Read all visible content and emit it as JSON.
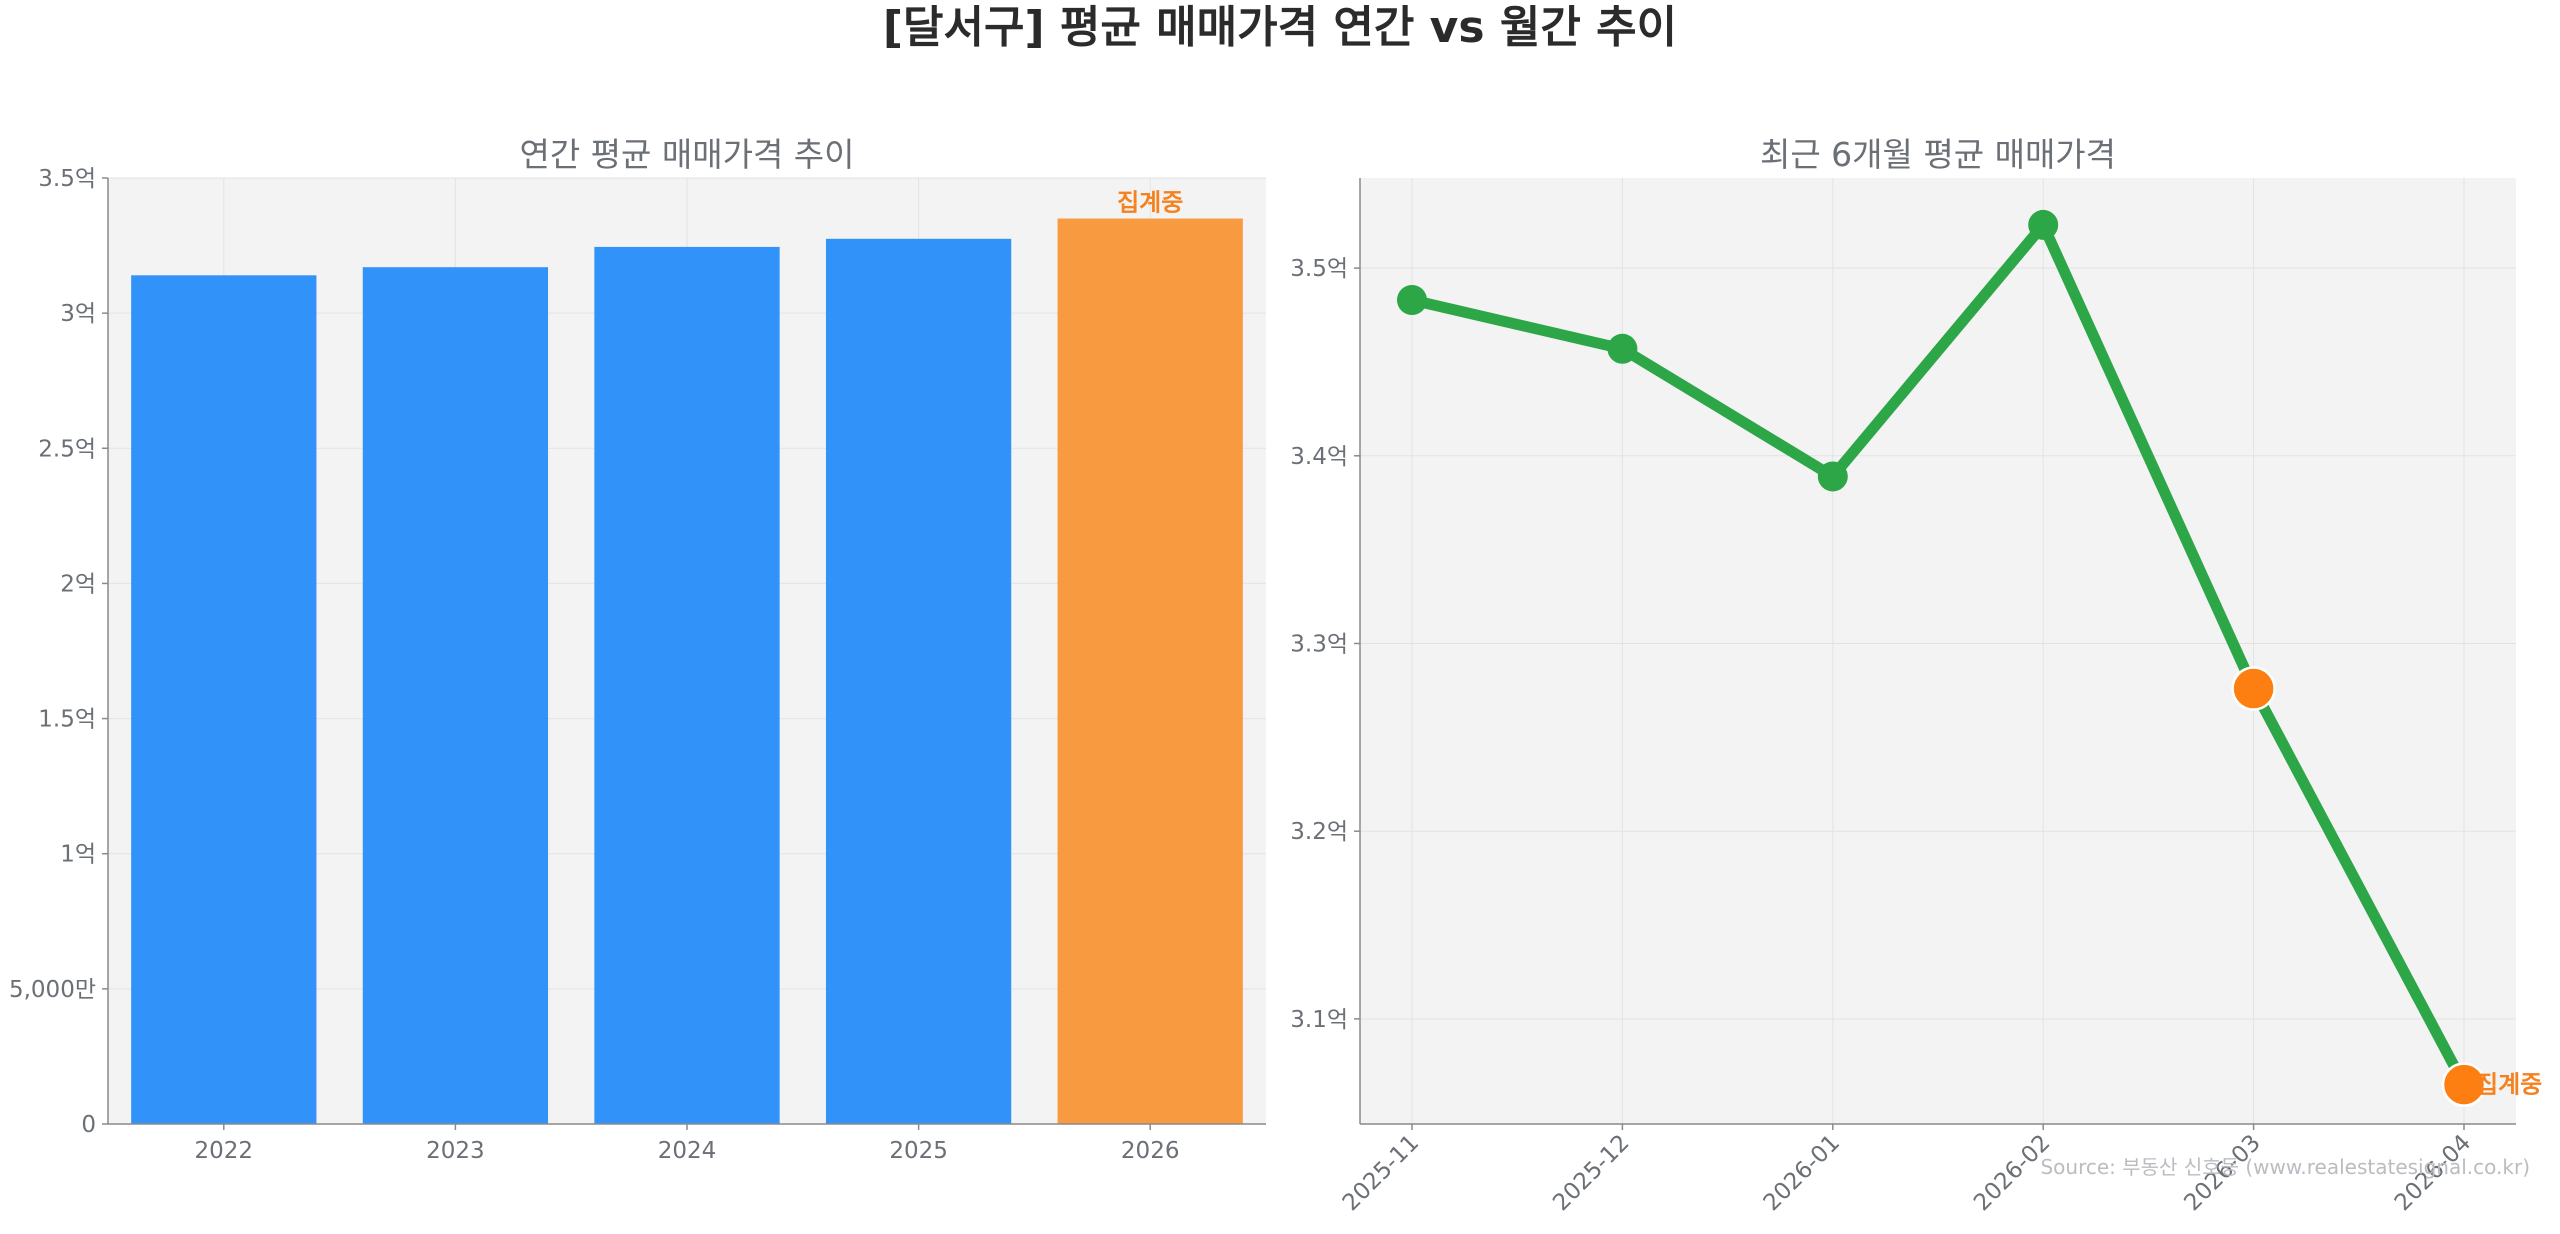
{
  "title": "[달서구] 평균 매매가격 연간 vs 월간 추이",
  "source": "Source: 부동산 신호등 (www.realestatesignal.co.kr)",
  "colors": {
    "bar": "#3193fa",
    "bar_partial": "#f89a40",
    "line": "#2ca646",
    "point_partial": "#fd7f11",
    "annotation": "#f5821f",
    "plot_bg": "#f3f3f3",
    "grid": "#e3e3e3"
  },
  "chart_data": [
    {
      "type": "bar",
      "title": "연간 평균 매매가격 추이",
      "categories": [
        "2022",
        "2023",
        "2024",
        "2025",
        "2026"
      ],
      "values": [
        314000000,
        317000000,
        324500000,
        327500000,
        335000000
      ],
      "in_progress": [
        false,
        false,
        false,
        false,
        true
      ],
      "annotation": "집계중",
      "ylim": [
        0,
        350000000
      ],
      "yticks": [
        0,
        50000000,
        100000000,
        150000000,
        200000000,
        250000000,
        300000000,
        350000000
      ],
      "ytick_labels": [
        "0",
        "5,000만",
        "1억",
        "1.5억",
        "2억",
        "2.5억",
        "3억",
        "3.5억"
      ],
      "grid": true
    },
    {
      "type": "line",
      "title": "최근 6개월 평균 매매가격",
      "x": [
        "2025-11",
        "2025-12",
        "2026-01",
        "2026-02",
        "2026-03",
        "2026-04"
      ],
      "values": [
        348300000,
        345700000,
        338900000,
        352300000,
        327600000,
        306500000
      ],
      "in_progress": [
        false,
        false,
        false,
        false,
        true,
        true
      ],
      "annotation": "집계중",
      "ylim": [
        304400000,
        354800000
      ],
      "yticks": [
        310000000,
        320000000,
        330000000,
        340000000,
        350000000
      ],
      "ytick_labels": [
        "3.1억",
        "3.2억",
        "3.3억",
        "3.4억",
        "3.5억"
      ],
      "grid": true
    }
  ]
}
